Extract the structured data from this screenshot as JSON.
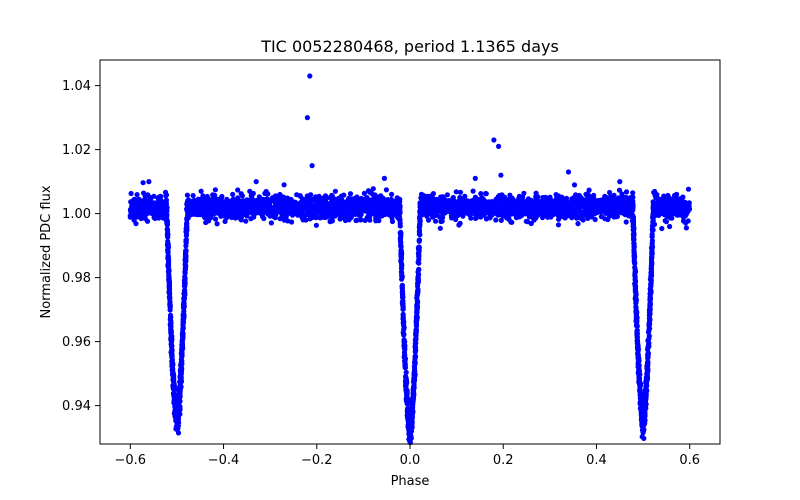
{
  "chart_data": {
    "type": "scatter",
    "title": "TIC 0052280468, period 1.1365 days",
    "xlabel": "Phase",
    "ylabel": "Normalized PDC flux",
    "xlim": [
      -0.665,
      0.665
    ],
    "ylim": [
      0.928,
      1.048
    ],
    "x_ticks": [
      -0.6,
      -0.4,
      -0.2,
      0.0,
      0.2,
      0.4,
      0.6
    ],
    "x_tick_labels": [
      "−0.6",
      "−0.4",
      "−0.2",
      "0.0",
      "0.2",
      "0.4",
      "0.6"
    ],
    "y_ticks": [
      0.94,
      0.96,
      0.98,
      1.0,
      1.02,
      1.04
    ],
    "y_tick_labels": [
      "0.94",
      "0.96",
      "0.98",
      "1.00",
      "1.02",
      "1.04"
    ],
    "grid": false,
    "legend": "none",
    "marker_color": "#0000ff",
    "baseline_flux": 1.002,
    "eclipses": [
      {
        "center_phase": -0.5,
        "min_flux": 0.935
      },
      {
        "center_phase": 0.0,
        "min_flux": 0.932
      },
      {
        "center_phase": 0.5,
        "min_flux": 0.935
      }
    ],
    "series": [
      {
        "values_note": "phase-folded light curve points (representative)",
        "outliers": [
          {
            "x": -0.215,
            "y": 1.043
          },
          {
            "x": -0.22,
            "y": 1.03
          },
          {
            "x": -0.21,
            "y": 1.015
          },
          {
            "x": 0.18,
            "y": 1.023
          },
          {
            "x": 0.19,
            "y": 1.021
          },
          {
            "x": 0.195,
            "y": 1.012
          },
          {
            "x": 0.34,
            "y": 1.013
          },
          {
            "x": -0.055,
            "y": 1.011
          },
          {
            "x": -0.33,
            "y": 1.01
          },
          {
            "x": 0.14,
            "y": 1.011
          },
          {
            "x": -0.27,
            "y": 1.009
          },
          {
            "x": 0.45,
            "y": 1.01
          },
          {
            "x": -0.56,
            "y": 1.01
          }
        ]
      }
    ]
  }
}
